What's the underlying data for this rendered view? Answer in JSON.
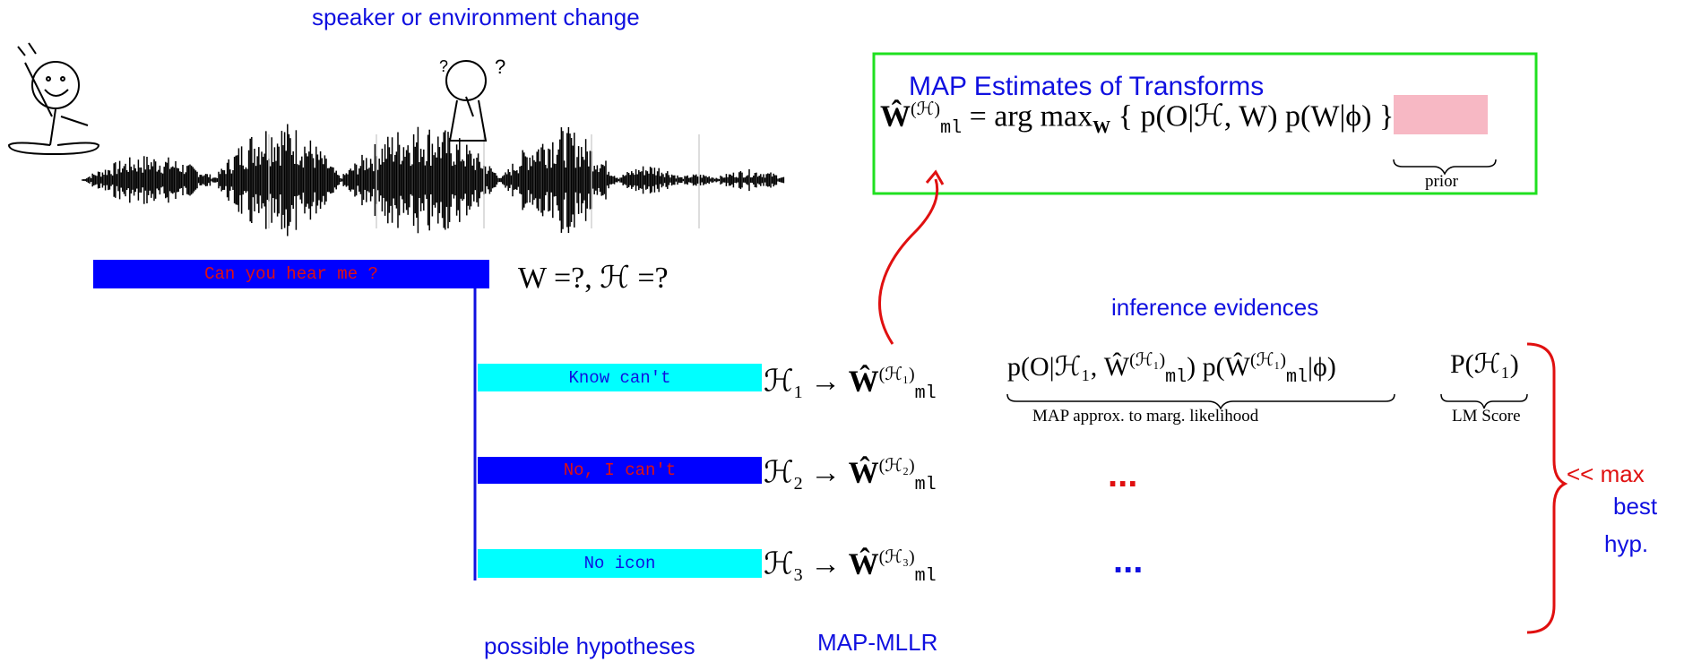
{
  "header": {
    "label": "speaker or environment change"
  },
  "map_box": {
    "title": "MAP Estimates of Transforms",
    "equation": {
      "lhs": "Ŵ",
      "lhs_sup": "(ℋ)",
      "lhs_sub": "ml",
      "rhs": "= arg max",
      "max_sub": "W",
      "likelihood": "{ p(O|ℋ, W)",
      "prior_term": "p(W|ϕ)",
      "close": "}"
    },
    "prior_label": "prior"
  },
  "root": {
    "label": "Can you hear me ?",
    "unknowns": "W =?,  ℋ =?"
  },
  "hypotheses": [
    {
      "label": "Know can't",
      "h": "ℋ",
      "idx": "1",
      "arrow": "→ Ŵ",
      "sup": "(ℋ₁)",
      "sub": "ml"
    },
    {
      "label": "No, I can't",
      "h": "ℋ",
      "idx": "2",
      "arrow": "→ Ŵ",
      "sup": "(ℋ₂)",
      "sub": "ml"
    },
    {
      "label": "No icon",
      "h": "ℋ",
      "idx": "3",
      "arrow": "→ Ŵ",
      "sup": "(ℋ₃)",
      "sub": "ml"
    }
  ],
  "evidence": {
    "title": "inference evidences",
    "likelihood": {
      "a": "p(O|ℋ₁, Ŵ",
      "a_sup": "(ℋ₁)",
      "a_sub": "ml",
      "b": ") p(Ŵ",
      "b_sup": "(ℋ₁)",
      "b_sub": "ml",
      "c": "|ϕ)"
    },
    "lm": "P(ℋ₁)",
    "under_left": "MAP approx. to marg. likelihood",
    "under_right": "LM Score",
    "ellipses": [
      "...",
      "..."
    ]
  },
  "selection": {
    "label": "<< max",
    "best": "best",
    "hyp": "hyp."
  },
  "footer": {
    "left": "possible hypotheses",
    "right": "MAP-MLLR"
  }
}
